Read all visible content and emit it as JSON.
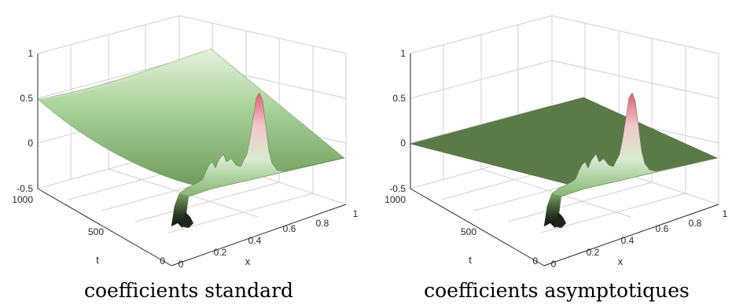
{
  "chart_data": [
    {
      "type": "surface",
      "caption": "coefficients standard",
      "xlabel": "x",
      "ylabel": "t",
      "zlabel": "",
      "xlim": [
        0,
        1
      ],
      "ylim": [
        0,
        1000
      ],
      "zlim": [
        -0.5,
        1
      ],
      "xticks": [
        "0",
        "0.2",
        "0.4",
        "0.6",
        "0.8",
        "1"
      ],
      "yticks": [
        "0",
        "500",
        "1000"
      ],
      "zticks": [
        "-0.5",
        "0",
        "0.5",
        "1"
      ],
      "surface": {
        "description_values": {
          "u_at_x0_t1000": 0.5,
          "u_at_x1_any_t": 0.0,
          "u_at_x0_t0": -0.3
        },
        "t0_profile": {
          "x": [
            0.0,
            0.02,
            0.04,
            0.06,
            0.08,
            0.1,
            0.15,
            0.2,
            0.3,
            0.4,
            0.5,
            0.55,
            0.6,
            0.62,
            0.65,
            0.67,
            0.7,
            0.72,
            0.74,
            0.76,
            0.78,
            0.8,
            0.82,
            0.85,
            0.9,
            1.0
          ],
          "u": [
            -0.3,
            -0.45,
            -0.3,
            -0.4,
            -0.2,
            -0.1,
            0.0,
            0.02,
            0.04,
            0.06,
            0.1,
            0.05,
            0.12,
            0.05,
            0.15,
            0.08,
            0.3,
            0.6,
            0.85,
            0.6,
            0.3,
            0.1,
            0.04,
            0.0,
            0.0,
            0.0
          ]
        }
      }
    },
    {
      "type": "surface",
      "caption": "coefficients asymptotiques",
      "xlabel": "x",
      "ylabel": "t",
      "zlabel": "",
      "xlim": [
        0,
        1
      ],
      "ylim": [
        0,
        1000
      ],
      "zlim": [
        -0.5,
        1
      ],
      "xticks": [
        "0",
        "0.2",
        "0.4",
        "0.6",
        "0.8",
        "1"
      ],
      "yticks": [
        "0",
        "500",
        "1000"
      ],
      "zticks": [
        "-0.5",
        "0",
        "0.5",
        "1"
      ],
      "surface": {
        "description_values": {
          "u_at_x0_t1000": 0.0,
          "u_at_x1_any_t": 0.0,
          "u_at_x0_t0": -0.3
        },
        "t0_profile": {
          "x": [
            0.0,
            0.02,
            0.04,
            0.06,
            0.08,
            0.1,
            0.15,
            0.2,
            0.3,
            0.4,
            0.5,
            0.55,
            0.6,
            0.62,
            0.65,
            0.67,
            0.7,
            0.72,
            0.74,
            0.76,
            0.78,
            0.8,
            0.82,
            0.85,
            0.9,
            1.0
          ],
          "u": [
            -0.3,
            -0.45,
            -0.3,
            -0.4,
            -0.2,
            -0.1,
            0.0,
            0.02,
            0.04,
            0.06,
            0.1,
            0.05,
            0.12,
            0.05,
            0.15,
            0.08,
            0.3,
            0.6,
            0.85,
            0.6,
            0.3,
            0.1,
            0.04,
            0.0,
            0.0,
            0.0
          ]
        }
      }
    }
  ],
  "colors": {
    "surface_low": "#1a1a1a",
    "surface_mid": "#5e8a4a",
    "surface_light": "#d9ecd0",
    "surface_peak": "#e06070",
    "plane": "#5b7a48"
  }
}
